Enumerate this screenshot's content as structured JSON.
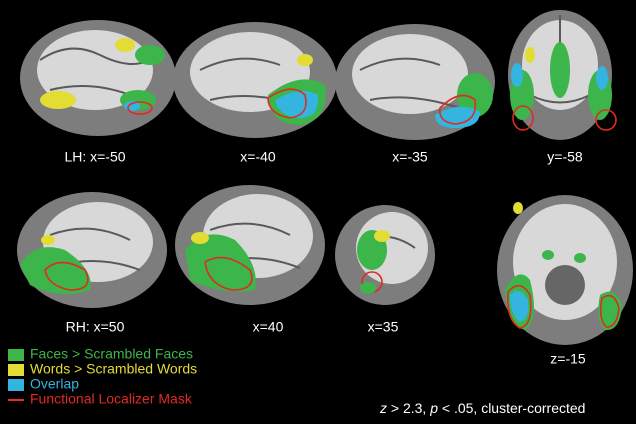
{
  "panels": [
    {
      "label": "LH: x=-50"
    },
    {
      "label": "x=-40"
    },
    {
      "label": "x=-35"
    },
    {
      "label": "y=-58"
    },
    {
      "label": "RH: x=50"
    },
    {
      "label": "x=40"
    },
    {
      "label": "x=35"
    },
    {
      "label": "z=-15"
    }
  ],
  "legend": [
    {
      "label": "Faces > Scrambled Faces",
      "color": "#3cb54a"
    },
    {
      "label": "Words > Scrambled Words",
      "color": "#e3dc33"
    },
    {
      "label": "Overlap",
      "color": "#33b5e0"
    },
    {
      "label": "Functional Localizer Mask",
      "color": "#e02a22"
    }
  ],
  "statistics": {
    "parts": [
      "z",
      " > 2.3, ",
      "p",
      " < .05, cluster-corrected"
    ]
  }
}
